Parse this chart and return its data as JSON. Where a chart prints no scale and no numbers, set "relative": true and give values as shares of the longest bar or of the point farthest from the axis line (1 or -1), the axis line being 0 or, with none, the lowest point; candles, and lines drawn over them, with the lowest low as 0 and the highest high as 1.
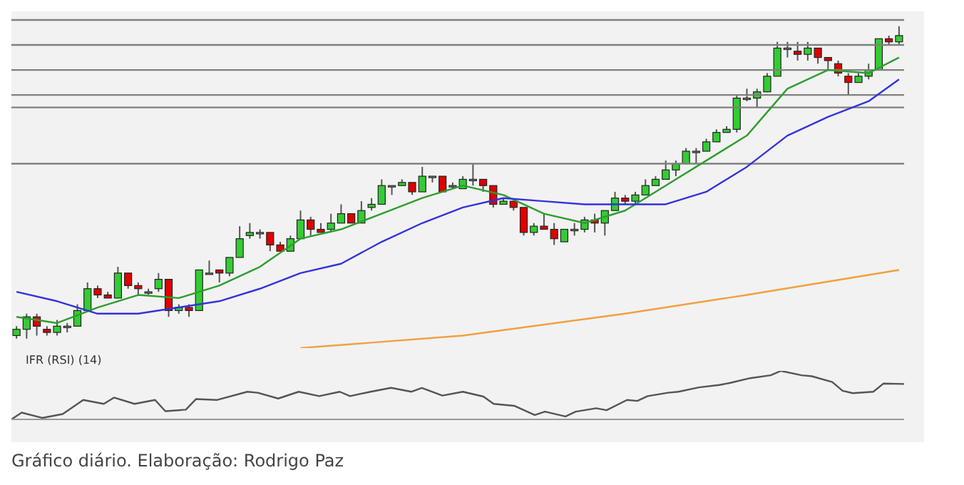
{
  "chart_data": [
    {
      "type": "candlestick",
      "relative": true,
      "categories": [
        null,
        null,
        null,
        null,
        null,
        null,
        null,
        null,
        null,
        null,
        null,
        null,
        null,
        null,
        null,
        null,
        null,
        null,
        null,
        null,
        null,
        null,
        null,
        null,
        null,
        null,
        null,
        null,
        null,
        null,
        null,
        null,
        null,
        null,
        null,
        null,
        null,
        null,
        null,
        null,
        null,
        null,
        null,
        null,
        null,
        null,
        null,
        null,
        null,
        null,
        null,
        null,
        null,
        null,
        null,
        null,
        null,
        null,
        null,
        null,
        null,
        null,
        null,
        null,
        null,
        null,
        null,
        null,
        null,
        null,
        null,
        null,
        null,
        null,
        null,
        null,
        null,
        null,
        null,
        null,
        null,
        null,
        null,
        null,
        null,
        null,
        null,
        null
      ],
      "ohlc": [
        [
          0.01,
          0.04,
          0,
          0.03
        ],
        [
          0.03,
          0.08,
          0,
          0.07
        ],
        [
          0.07,
          0.08,
          0.01,
          0.04
        ],
        [
          0.03,
          0.04,
          0.01,
          0.02
        ],
        [
          0.02,
          0.06,
          0.01,
          0.04
        ],
        [
          0.04,
          0.05,
          0.02,
          0.04
        ],
        [
          0.04,
          0.11,
          0.04,
          0.09
        ],
        [
          0.09,
          0.18,
          0.09,
          0.16
        ],
        [
          0.16,
          0.17,
          0.13,
          0.14
        ],
        [
          0.14,
          0.15,
          0.13,
          0.13
        ],
        [
          0.13,
          0.23,
          0.13,
          0.21
        ],
        [
          0.21,
          0.21,
          0.16,
          0.17
        ],
        [
          0.17,
          0.18,
          0.14,
          0.16
        ],
        [
          0.15,
          0.16,
          0.14,
          0.15
        ],
        [
          0.16,
          0.21,
          0.15,
          0.19
        ],
        [
          0.19,
          0.19,
          0.07,
          0.09
        ],
        [
          0.09,
          0.11,
          0.08,
          0.1
        ],
        [
          0.1,
          0.11,
          0.07,
          0.09
        ],
        [
          0.09,
          0.22,
          0.09,
          0.22
        ],
        [
          0.21,
          0.25,
          0.21,
          0.21
        ],
        [
          0.22,
          0.22,
          0.18,
          0.21
        ],
        [
          0.21,
          0.26,
          0.2,
          0.26
        ],
        [
          0.26,
          0.36,
          0.26,
          0.32
        ],
        [
          0.33,
          0.37,
          0.32,
          0.34
        ],
        [
          0.34,
          0.35,
          0.32,
          0.34
        ],
        [
          0.34,
          0.34,
          0.28,
          0.3
        ],
        [
          0.3,
          0.31,
          0.28,
          0.28
        ],
        [
          0.28,
          0.33,
          0.28,
          0.32
        ],
        [
          0.32,
          0.41,
          0.32,
          0.38
        ],
        [
          0.38,
          0.39,
          0.33,
          0.35
        ],
        [
          0.35,
          0.37,
          0.34,
          0.34
        ],
        [
          0.35,
          0.4,
          0.34,
          0.37
        ],
        [
          0.37,
          0.43,
          0.37,
          0.4
        ],
        [
          0.4,
          0.4,
          0.37,
          0.37
        ],
        [
          0.37,
          0.44,
          0.37,
          0.41
        ],
        [
          0.42,
          0.45,
          0.41,
          0.43
        ],
        [
          0.43,
          0.51,
          0.43,
          0.49
        ],
        [
          0.49,
          0.49,
          0.46,
          0.49
        ],
        [
          0.49,
          0.51,
          0.49,
          0.5
        ],
        [
          0.5,
          0.5,
          0.46,
          0.47
        ],
        [
          0.47,
          0.55,
          0.47,
          0.52
        ],
        [
          0.52,
          0.52,
          0.5,
          0.52
        ],
        [
          0.52,
          0.52,
          0.47,
          0.47
        ],
        [
          0.49,
          0.5,
          0.48,
          0.49
        ],
        [
          0.48,
          0.52,
          0.48,
          0.51
        ],
        [
          0.51,
          0.56,
          0.49,
          0.51
        ],
        [
          0.51,
          0.51,
          0.47,
          0.49
        ],
        [
          0.49,
          0.49,
          0.42,
          0.43
        ],
        [
          0.43,
          0.45,
          0.43,
          0.44
        ],
        [
          0.44,
          0.44,
          0.41,
          0.42
        ],
        [
          0.42,
          0.42,
          0.33,
          0.34
        ],
        [
          0.34,
          0.37,
          0.33,
          0.36
        ],
        [
          0.36,
          0.4,
          0.35,
          0.35
        ],
        [
          0.35,
          0.37,
          0.3,
          0.32
        ],
        [
          0.31,
          0.35,
          0.31,
          0.35
        ],
        [
          0.35,
          0.37,
          0.33,
          0.35
        ],
        [
          0.35,
          0.39,
          0.34,
          0.38
        ],
        [
          0.38,
          0.4,
          0.34,
          0.37
        ],
        [
          0.37,
          0.41,
          0.33,
          0.41
        ],
        [
          0.41,
          0.47,
          0.41,
          0.45
        ],
        [
          0.45,
          0.46,
          0.43,
          0.44
        ],
        [
          0.44,
          0.47,
          0.43,
          0.46
        ],
        [
          0.46,
          0.51,
          0.46,
          0.49
        ],
        [
          0.49,
          0.52,
          0.49,
          0.51
        ],
        [
          0.51,
          0.57,
          0.51,
          0.54
        ],
        [
          0.54,
          0.57,
          0.52,
          0.56
        ],
        [
          0.56,
          0.61,
          0.56,
          0.6
        ],
        [
          0.6,
          0.61,
          0.56,
          0.6
        ],
        [
          0.6,
          0.64,
          0.6,
          0.63
        ],
        [
          0.63,
          0.67,
          0.63,
          0.66
        ],
        [
          0.66,
          0.68,
          0.66,
          0.67
        ],
        [
          0.67,
          0.78,
          0.66,
          0.77
        ],
        [
          0.77,
          0.8,
          0.76,
          0.77
        ],
        [
          0.77,
          0.8,
          0.74,
          0.79
        ],
        [
          0.79,
          0.85,
          0.79,
          0.84
        ],
        [
          0.84,
          0.95,
          0.84,
          0.93
        ],
        [
          0.93,
          0.95,
          0.9,
          0.93
        ],
        [
          0.92,
          0.95,
          0.89,
          0.91
        ],
        [
          0.91,
          0.95,
          0.89,
          0.93
        ],
        [
          0.93,
          0.93,
          0.88,
          0.9
        ],
        [
          0.9,
          0.9,
          0.86,
          0.89
        ],
        [
          0.88,
          0.89,
          0.84,
          0.85
        ],
        [
          0.84,
          0.85,
          0.78,
          0.82
        ],
        [
          0.82,
          0.85,
          0.82,
          0.84
        ],
        [
          0.84,
          0.88,
          0.83,
          0.86
        ],
        [
          0.86,
          0.96,
          0.86,
          0.96
        ],
        [
          0.96,
          0.97,
          0.94,
          0.95
        ],
        [
          0.95,
          1,
          0.94,
          0.97
        ]
      ],
      "colors": [
        "#33cc33",
        "#33cc33",
        "#e00000",
        "#e00000",
        "#33cc33",
        "#999999",
        "#33cc33",
        "#33cc33",
        "#e00000",
        "#e00000",
        "#33cc33",
        "#e00000",
        "#e00000",
        "#999999",
        "#33cc33",
        "#e00000",
        "#33cc33",
        "#e00000",
        "#33cc33",
        "#999999",
        "#e00000",
        "#33cc33",
        "#33cc33",
        "#33cc33",
        "#999999",
        "#e00000",
        "#e00000",
        "#33cc33",
        "#33cc33",
        "#e00000",
        "#e00000",
        "#33cc33",
        "#33cc33",
        "#e00000",
        "#33cc33",
        "#33cc33",
        "#33cc33",
        "#999999",
        "#33cc33",
        "#e00000",
        "#33cc33",
        "#999999",
        "#e00000",
        "#999999",
        "#33cc33",
        "#999999",
        "#e00000",
        "#e00000",
        "#33cc33",
        "#e00000",
        "#e00000",
        "#33cc33",
        "#e00000",
        "#e00000",
        "#33cc33",
        "#999999",
        "#33cc33",
        "#e00000",
        "#33cc33",
        "#33cc33",
        "#e00000",
        "#33cc33",
        "#33cc33",
        "#33cc33",
        "#33cc33",
        "#33cc33",
        "#33cc33",
        "#999999",
        "#33cc33",
        "#33cc33",
        "#33cc33",
        "#33cc33",
        "#999999",
        "#33cc33",
        "#33cc33",
        "#33cc33",
        "#999999",
        "#e00000",
        "#33cc33",
        "#e00000",
        "#e00000",
        "#e00000",
        "#e00000",
        "#33cc33",
        "#33cc33",
        "#33cc33",
        "#e00000",
        "#33cc33"
      ],
      "series": [
        {
          "type": "line",
          "color": "#2e9e2e",
          "values": [
            0.07,
            null,
            null,
            null,
            0.05,
            null,
            null,
            null,
            0.1,
            null,
            null,
            null,
            0.14,
            null,
            null,
            null,
            0.13,
            null,
            null,
            null,
            0.17,
            null,
            null,
            null,
            0.23,
            null,
            null,
            null,
            0.32,
            null,
            null,
            null,
            0.35,
            null,
            null,
            null,
            0.4,
            null,
            null,
            null,
            0.45,
            null,
            null,
            null,
            0.49,
            null,
            null,
            null,
            0.46,
            null,
            null,
            null,
            0.4,
            null,
            null,
            null,
            0.37,
            null,
            null,
            null,
            0.41,
            null,
            null,
            null,
            0.49,
            null,
            null,
            null,
            0.57,
            null,
            null,
            null,
            0.65,
            null,
            null,
            null,
            0.8,
            null,
            null,
            null,
            0.86,
            null,
            null,
            null,
            0.85,
            null,
            null,
            0.9
          ]
        },
        {
          "type": "line",
          "color": "#3333dd",
          "values": [
            0.15,
            null,
            null,
            null,
            0.12,
            null,
            null,
            null,
            0.08,
            null,
            null,
            null,
            0.08,
            null,
            null,
            null,
            0.1,
            null,
            null,
            null,
            0.12,
            null,
            null,
            null,
            0.16,
            null,
            null,
            null,
            0.21,
            null,
            null,
            null,
            0.24,
            null,
            null,
            null,
            0.31,
            null,
            null,
            null,
            0.37,
            null,
            null,
            null,
            0.42,
            null,
            null,
            null,
            0.45,
            null,
            null,
            null,
            0.44,
            null,
            null,
            null,
            0.43,
            null,
            null,
            null,
            0.43,
            null,
            null,
            null,
            0.43,
            null,
            null,
            null,
            0.47,
            null,
            null,
            null,
            0.55,
            null,
            null,
            null,
            0.65,
            null,
            null,
            null,
            0.71,
            null,
            null,
            null,
            0.76,
            null,
            null,
            0.83
          ]
        },
        {
          "type": "line",
          "color": "#f0a040",
          "values": [
            null,
            null,
            null,
            null,
            null,
            null,
            null,
            null,
            null,
            null,
            null,
            null,
            null,
            null,
            null,
            null,
            null,
            null,
            null,
            null,
            null,
            null,
            null,
            null,
            null,
            null,
            null,
            null,
            -0.03,
            null,
            null,
            null,
            null,
            null,
            null,
            null,
            null,
            null,
            null,
            null,
            null,
            null,
            null,
            null,
            0.01,
            null,
            null,
            null,
            null,
            null,
            null,
            null,
            null,
            null,
            null,
            null,
            null,
            null,
            null,
            null,
            0.08,
            null,
            null,
            null,
            null,
            null,
            null,
            null,
            null,
            null,
            null,
            null,
            0.14,
            null,
            null,
            null,
            null,
            null,
            null,
            null,
            null,
            null,
            null,
            null,
            null,
            null,
            null,
            0.22
          ]
        }
      ],
      "ref_lines": [
        {
          "axis": "y",
          "value": 1.02,
          "color": "#808080"
        },
        {
          "axis": "y",
          "value": 0.94,
          "color": "#808080"
        },
        {
          "axis": "y",
          "value": 0.86,
          "color": "#808080"
        },
        {
          "axis": "y",
          "value": 0.78,
          "color": "#808080"
        },
        {
          "axis": "y",
          "value": 0.74,
          "color": "#808080"
        },
        {
          "axis": "y",
          "value": 0.56,
          "color": "#808080"
        }
      ]
    },
    {
      "type": "line",
      "relative": true,
      "title": "IFR (RSI) (14)",
      "marker": "none",
      "categories": [
        null,
        null,
        null,
        null,
        null,
        null,
        null,
        null,
        null,
        null,
        null,
        null,
        null,
        null,
        null,
        null,
        null,
        null,
        null,
        null,
        null,
        null,
        null,
        null,
        null,
        null,
        null,
        null,
        null,
        null,
        null,
        null,
        null,
        null,
        null,
        null,
        null,
        null,
        null,
        null,
        null,
        null,
        null,
        null,
        null,
        null,
        null,
        null,
        null,
        null,
        null,
        null,
        null,
        null,
        null,
        null,
        null,
        null,
        null,
        null,
        null,
        null,
        null,
        null,
        null,
        null,
        null,
        null,
        null,
        null,
        null,
        null,
        null,
        null,
        null,
        null,
        null,
        null,
        null,
        null,
        null,
        null,
        null,
        null,
        null,
        null,
        null,
        null
      ],
      "series": [
        {
          "color": "#555555",
          "values": [
            0,
            0.14,
            null,
            0.03,
            null,
            0.11,
            null,
            0.4,
            null,
            0.32,
            0.45,
            null,
            0.32,
            null,
            0.4,
            0.17,
            null,
            0.2,
            0.42,
            null,
            0.4,
            null,
            null,
            0.57,
            0.55,
            null,
            0.43,
            null,
            0.57,
            null,
            0.48,
            null,
            0.57,
            0.48,
            null,
            0.57,
            null,
            0.65,
            null,
            0.57,
            0.65,
            null,
            0.49,
            null,
            0.57,
            null,
            0.47,
            0.32,
            null,
            0.28,
            null,
            0.09,
            0.16,
            null,
            0.06,
            0.16,
            null,
            0.23,
            0.19,
            null,
            0.4,
            0.38,
            0.48,
            null,
            0.55,
            0.57,
            null,
            0.66,
            null,
            0.71,
            0.75,
            null,
            0.85,
            null,
            0.91,
            1,
            null,
            0.91,
            0.89,
            null,
            0.77,
            0.59,
            0.54,
            null,
            0.57,
            0.74,
            null,
            0.73
          ]
        }
      ],
      "annotations": [
        "Gráfico diário. Elaboração: Rodrigo Paz"
      ]
    }
  ]
}
